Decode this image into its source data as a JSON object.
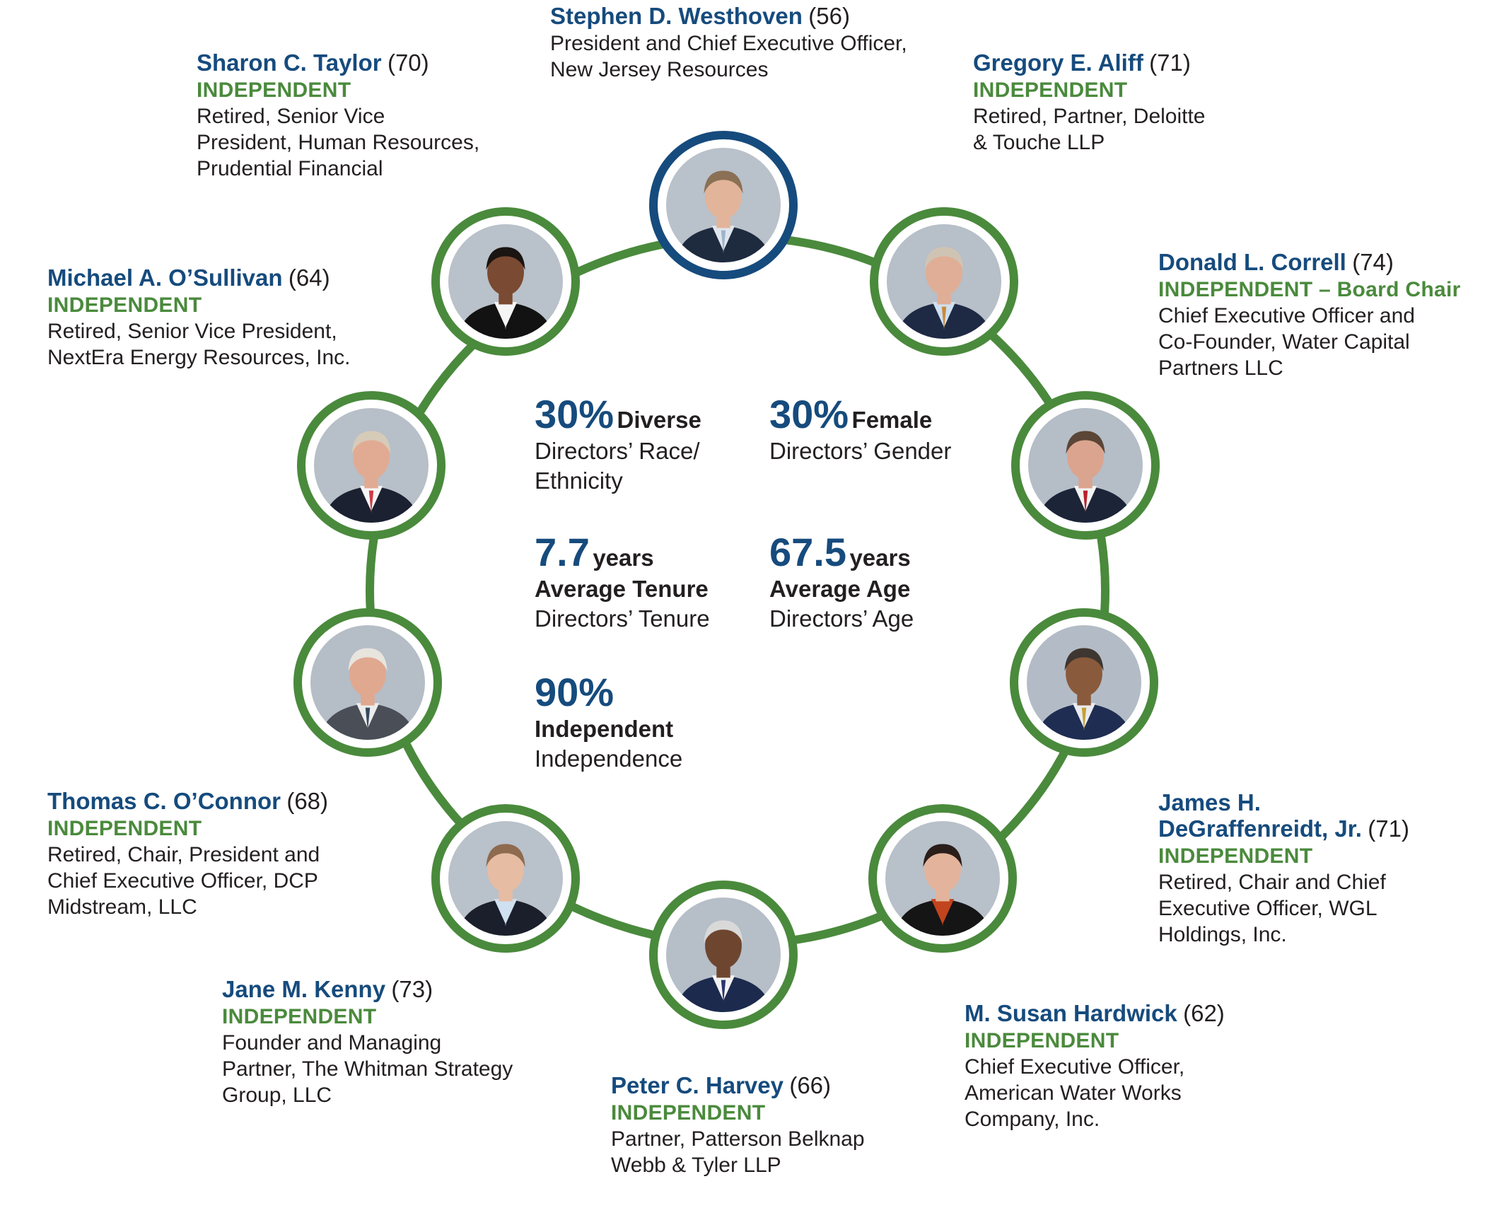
{
  "colors": {
    "ring": "#4a8a3c",
    "ceo_ring": "#164b7d",
    "name": "#164b7d",
    "independent": "#4a8a3c"
  },
  "directors": [
    {
      "name": "Stephen D. Westhoven",
      "age": "(56)",
      "tag": "",
      "role": [
        "President and Chief Executive Officer,",
        "New Jersey Resources"
      ]
    },
    {
      "name": "Gregory E. Aliff",
      "age": "(71)",
      "tag": "INDEPENDENT",
      "role": [
        "Retired, Partner, Deloitte",
        "& Touche LLP"
      ]
    },
    {
      "name": "Donald L. Correll",
      "age": "(74)",
      "tag": "INDEPENDENT – Board Chair",
      "role": [
        "Chief Executive Officer and",
        "Co-Founder, Water Capital",
        "Partners LLC"
      ]
    },
    {
      "name": "James H. DeGraffenreidt, Jr.",
      "name_lines": [
        "James H.",
        "DeGraffenreidt, Jr."
      ],
      "age": "(71)",
      "tag": "INDEPENDENT",
      "role": [
        "Retired, Chair and Chief",
        "Executive Officer, WGL",
        "Holdings, Inc."
      ]
    },
    {
      "name": "M. Susan Hardwick",
      "age": "(62)",
      "tag": "INDEPENDENT",
      "role": [
        "Chief Executive Officer,",
        "American Water Works",
        "Company, Inc."
      ]
    },
    {
      "name": "Peter C. Harvey",
      "age": "(66)",
      "tag": "INDEPENDENT",
      "role": [
        "Partner, Patterson Belknap",
        "Webb & Tyler LLP"
      ]
    },
    {
      "name": "Jane M. Kenny",
      "age": "(73)",
      "tag": "INDEPENDENT",
      "role": [
        "Founder and Managing",
        "Partner, The Whitman Strategy",
        "Group, LLC"
      ]
    },
    {
      "name": "Thomas C. O’Connor",
      "age": "(68)",
      "tag": "INDEPENDENT",
      "role": [
        "Retired, Chair, President and",
        "Chief Executive Officer, DCP",
        "Midstream, LLC"
      ]
    },
    {
      "name": "Michael A. O’Sullivan",
      "age": "(64)",
      "tag": "INDEPENDENT",
      "role": [
        "Retired, Senior Vice President,",
        "NextEra Energy Resources, Inc."
      ]
    },
    {
      "name": "Sharon C. Taylor",
      "age": "(70)",
      "tag": "INDEPENDENT",
      "role": [
        "Retired, Senior Vice",
        "President, Human Resources,",
        "Prudential Financial"
      ]
    }
  ],
  "stats": {
    "diverse": {
      "value": "30%",
      "unit": "Diverse",
      "sub1": "Directors’ Race/",
      "sub2": "Ethnicity"
    },
    "female": {
      "value": "30%",
      "unit": "Female",
      "sub1": "Directors’ Gender"
    },
    "tenure": {
      "value": "7.7",
      "unit": "years",
      "label": "Average Tenure",
      "sub1": "Directors’ Tenure"
    },
    "age": {
      "value": "67.5",
      "unit": "years",
      "label": "Average Age",
      "sub1": "Directors’ Age"
    },
    "independent": {
      "value": "90%",
      "label": "Independent",
      "sub1": "Independence"
    }
  },
  "photos": [
    {
      "icon": "portrait-westhoven-icon",
      "bg": "#b9c1ca",
      "skin": "#e2b49a",
      "hair": "#8a7055",
      "suit": "#1e2a3e",
      "shirt": "#dfe6ee",
      "tie": "#9fb4c8"
    },
    {
      "icon": "portrait-aliff-icon",
      "bg": "#b7bfc8",
      "skin": "#e0ae96",
      "hair": "#cfc4b4",
      "suit": "#1e2a44",
      "shirt": "#cfe0f0",
      "tie": "#c98a3c"
    },
    {
      "icon": "portrait-correll-icon",
      "bg": "#b5bdc7",
      "skin": "#dba48e",
      "hair": "#5a4536",
      "suit": "#1c2438",
      "shirt": "#f3f3f3",
      "tie": "#b8202a"
    },
    {
      "icon": "portrait-degraffenreidt-icon",
      "bg": "#b3bcc6",
      "skin": "#8a5a3c",
      "hair": "#3e3630",
      "suit": "#1f2d52",
      "shirt": "#e9ecf0",
      "tie": "#c7a034"
    },
    {
      "icon": "portrait-hardwick-icon",
      "bg": "#b8c0c9",
      "skin": "#e3b49b",
      "hair": "#2a1e1a",
      "suit": "#151515",
      "shirt": "#c2441e",
      "tie": "#c2441e"
    },
    {
      "icon": "portrait-harvey-icon",
      "bg": "#b6bec8",
      "skin": "#6e4630",
      "hair": "#d9d9d9",
      "suit": "#1c2a4e",
      "shirt": "#f2f2f2",
      "tie": "#2a3570"
    },
    {
      "icon": "portrait-kenny-icon",
      "bg": "#b9c1ca",
      "skin": "#e6bca3",
      "hair": "#8e6a4e",
      "suit": "#1a1f2b",
      "shirt": "#cfe0f0",
      "tie": "#cfe0f0"
    },
    {
      "icon": "portrait-oconnor-icon",
      "bg": "#b5bdc7",
      "skin": "#e0a88f",
      "hair": "#e8e4de",
      "suit": "#4a4e56",
      "shirt": "#ececec",
      "tie": "#34495e"
    },
    {
      "icon": "portrait-osullivan-icon",
      "bg": "#b7bfc8",
      "skin": "#e1ab93",
      "hair": "#d6cbb8",
      "suit": "#1b2130",
      "shirt": "#f5f5f5",
      "tie": "#cf3a48"
    },
    {
      "icon": "portrait-taylor-icon",
      "bg": "#b9c1ca",
      "skin": "#7a4a32",
      "hair": "#1a1412",
      "suit": "#121212",
      "shirt": "#f5f5f5",
      "tie": "#f5f5f5"
    }
  ]
}
